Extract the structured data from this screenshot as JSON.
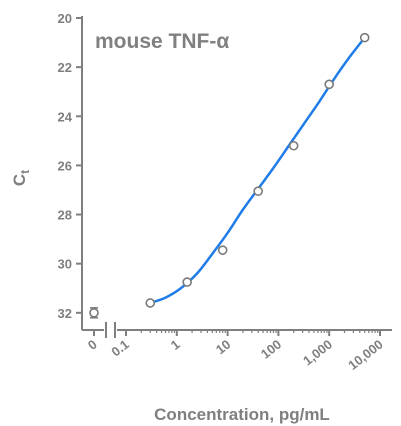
{
  "chart_data": {
    "type": "scatter",
    "title": "mouse TNF-α",
    "xlabel": "Concentration, pg/mL",
    "ylabel": "Ct",
    "ylabel_main": "C",
    "ylabel_sub": "t",
    "x_scale": "log",
    "xlim": [
      0.1,
      10000
    ],
    "ylim": [
      32.7,
      20
    ],
    "y_inverted": true,
    "y_ticks": [
      20,
      22,
      24,
      26,
      28,
      30,
      32
    ],
    "y_tick_labels": [
      "20",
      "22",
      "24",
      "26",
      "28",
      "30",
      "32"
    ],
    "x_ticks": [
      0.1,
      1,
      10,
      100,
      1000,
      10000
    ],
    "x_tick_labels": [
      "0.1",
      "1",
      "10",
      "100",
      "1,000",
      "10,000"
    ],
    "x_zero_label": "0",
    "axis_break": true,
    "grid": false,
    "series": [
      {
        "type": "scatter",
        "x": [
          0.3,
          1.6,
          8,
          40,
          200,
          1000,
          5000
        ],
        "y": [
          31.6,
          30.75,
          29.45,
          27.05,
          25.2,
          22.7,
          20.8
        ]
      },
      {
        "type": "line",
        "fit": "4PL",
        "x": [
          0.3,
          0.6,
          1.2,
          2.5,
          5,
          10,
          20,
          40,
          80,
          160,
          320,
          640,
          1280,
          2500,
          5000
        ],
        "y": [
          31.6,
          31.38,
          31.0,
          30.4,
          29.6,
          28.75,
          27.8,
          26.95,
          26.1,
          25.2,
          24.3,
          23.4,
          22.45,
          21.6,
          20.8
        ]
      }
    ],
    "zero_point": {
      "x": 0,
      "y": 32.0,
      "error": 0.2
    },
    "colors": {
      "axis": "#7f7f7f",
      "curve": "#1f7ce8",
      "marker": "#7a7a7a",
      "text": "#7f7f7f"
    }
  }
}
